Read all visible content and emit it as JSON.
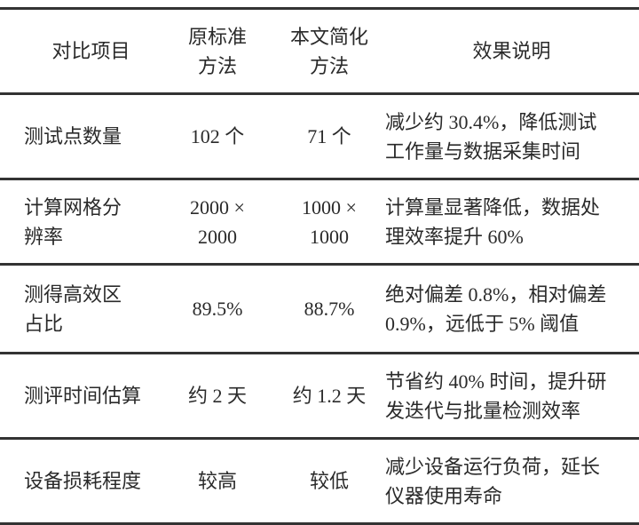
{
  "table": {
    "header": [
      [
        "对比项目"
      ],
      [
        "原标准",
        "方法"
      ],
      [
        "本文简化",
        "方法"
      ],
      [
        "效果说明"
      ]
    ],
    "rows": [
      [
        [
          "测试点数量"
        ],
        [
          "102 个"
        ],
        [
          "71 个"
        ],
        [
          "减少约 30.4%，降低测试",
          "工作量与数据采集时间"
        ]
      ],
      [
        [
          "计算网格分",
          "辨率"
        ],
        [
          "2000 ×",
          "2000"
        ],
        [
          "1000 ×",
          "1000"
        ],
        [
          "计算量显著降低，数据处",
          "理效率提升 60%"
        ]
      ],
      [
        [
          "测得高效区",
          "占比"
        ],
        [
          "89.5%"
        ],
        [
          "88.7%"
        ],
        [
          "绝对偏差 0.8%，相对偏差",
          "0.9%，远低于 5% 阈值"
        ]
      ],
      [
        [
          "测评时间估算"
        ],
        [
          "约 2 天"
        ],
        [
          "约 1.2 天"
        ],
        [
          "节省约 40% 时间，提升研",
          "发迭代与批量检测效率"
        ]
      ],
      [
        [
          "设备损耗程度"
        ],
        [
          "较高"
        ],
        [
          "较低"
        ],
        [
          "减少设备运行负荷，延长",
          "仪器使用寿命"
        ]
      ]
    ]
  }
}
